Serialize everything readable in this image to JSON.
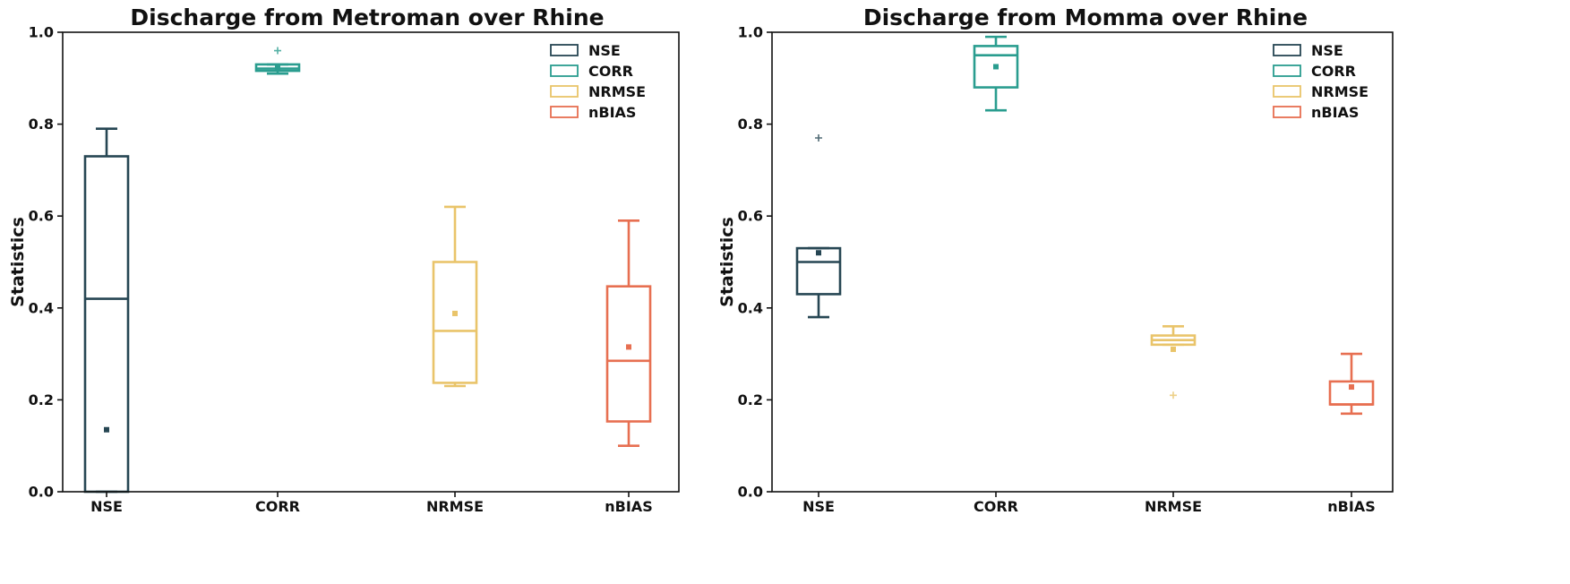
{
  "colors": {
    "NSE": "#264653",
    "CORR": "#2a9d8f",
    "NRMSE": "#e9c46a",
    "nBIAS": "#e76f51"
  },
  "chart_data": [
    {
      "type": "box",
      "title": "Discharge from Metroman over Rhine",
      "xlabel": "",
      "ylabel": "Statistics",
      "ylim": [
        0.0,
        1.0
      ],
      "yticks": [
        "0.0",
        "0.2",
        "0.4",
        "0.6",
        "0.8",
        "1.0"
      ],
      "categories": [
        "NSE",
        "CORR",
        "NRMSE",
        "nBIAS"
      ],
      "legend": {
        "placement": "top-right",
        "entries": [
          "NSE",
          "CORR",
          "NRMSE",
          "nBIAS"
        ]
      },
      "grid": false,
      "boxes": [
        {
          "name": "NSE",
          "whisker_low": 0.0,
          "q1": 0.0,
          "median": 0.42,
          "q3": 0.73,
          "whisker_high": 0.79,
          "mean": 0.135,
          "outliers": []
        },
        {
          "name": "CORR",
          "whisker_low": 0.91,
          "q1": 0.916,
          "median": 0.921,
          "q3": 0.93,
          "whisker_high": 0.93,
          "mean": 0.923,
          "outliers": [
            0.96
          ]
        },
        {
          "name": "NRMSE",
          "whisker_low": 0.23,
          "q1": 0.237,
          "median": 0.35,
          "q3": 0.5,
          "whisker_high": 0.62,
          "mean": 0.388,
          "outliers": []
        },
        {
          "name": "nBIAS",
          "whisker_low": 0.1,
          "q1": 0.153,
          "median": 0.285,
          "q3": 0.447,
          "whisker_high": 0.59,
          "mean": 0.315,
          "outliers": []
        }
      ]
    },
    {
      "type": "box",
      "title": "Discharge from Momma over Rhine",
      "xlabel": "",
      "ylabel": "Statistics",
      "ylim": [
        0.0,
        1.0
      ],
      "yticks": [
        "0.0",
        "0.2",
        "0.4",
        "0.6",
        "0.8",
        "1.0"
      ],
      "categories": [
        "NSE",
        "CORR",
        "NRMSE",
        "nBIAS"
      ],
      "legend": {
        "placement": "top-right",
        "entries": [
          "NSE",
          "CORR",
          "NRMSE",
          "nBIAS"
        ]
      },
      "grid": false,
      "boxes": [
        {
          "name": "NSE",
          "whisker_low": 0.38,
          "q1": 0.43,
          "median": 0.5,
          "q3": 0.53,
          "whisker_high": 0.53,
          "mean": 0.52,
          "outliers": [
            0.77
          ]
        },
        {
          "name": "CORR",
          "whisker_low": 0.83,
          "q1": 0.88,
          "median": 0.95,
          "q3": 0.97,
          "whisker_high": 0.99,
          "mean": 0.925,
          "outliers": []
        },
        {
          "name": "NRMSE",
          "whisker_low": 0.32,
          "q1": 0.32,
          "median": 0.33,
          "q3": 0.34,
          "whisker_high": 0.36,
          "mean": 0.31,
          "outliers": [
            0.21
          ]
        },
        {
          "name": "nBIAS",
          "whisker_low": 0.17,
          "q1": 0.19,
          "median": 0.19,
          "q3": 0.24,
          "whisker_high": 0.3,
          "mean": 0.228,
          "outliers": []
        }
      ]
    }
  ]
}
